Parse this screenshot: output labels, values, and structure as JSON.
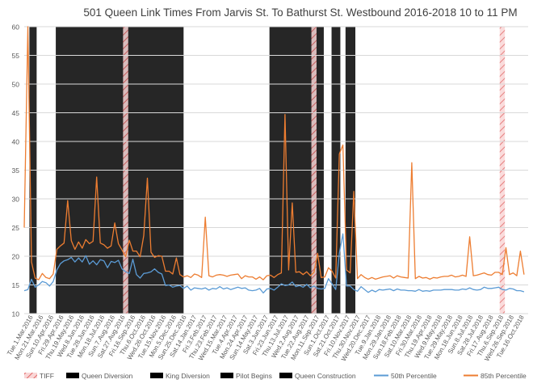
{
  "chart_data": {
    "type": "line",
    "title": "501 Queen Link Times From Jarvis St. To Bathurst St. Westbound 2016-2018 10 to 11 PM",
    "xlabel": "",
    "ylabel": "",
    "ylim": [
      10,
      60
    ],
    "yticks": [
      "10",
      "15",
      "20",
      "25",
      "30",
      "35",
      "40",
      "45",
      "50",
      "55",
      "60"
    ],
    "grid": true,
    "legend_position": "bottom",
    "x_start": "2016-03-01",
    "x_end": "2018-10-31",
    "x_tick_labels": [
      "Tue.1.Mar.2016",
      "Mon.21.Mar.2016",
      "Sun.10.Apr.2016",
      "Fri.29.Apr.2016",
      "Thu.19.May.2016",
      "Wed.8.Jun.2016",
      "Tue.28.Jun.2016",
      "Mon.18.Jul.2016",
      "Sun.7.Aug.2016",
      "Sat.27.Aug.2016",
      "Fri.16.Sep.2016",
      "Thu.6.Oct.2016",
      "Wed.26.Oct.2016",
      "Tue.15.Nov.2016",
      "Mon.5.Dec.2016",
      "Sun.25.Dec.2016",
      "Sat.14.Jan.2017",
      "Fri.3.Feb.2017",
      "Thu.23.Feb.2017",
      "Wed.15.Mar.2017",
      "Tue.4.Apr.2017",
      "Mon.24.Apr.2017",
      "Sun.14.May.2017",
      "Sat.3.Jun.2017",
      "Fri.23.Jun.2017",
      "Thu.13.Jul.2017",
      "Wed.2.Aug.2017",
      "Tue.22.Aug.2017",
      "Mon.11.Sep.2017",
      "Sun.1.Oct.2017",
      "Sat.21.Oct.2017",
      "Fri.10.Nov.2017",
      "Thu.30.Nov.2017",
      "Wed.20.Dec.2017",
      "Tue.9.Jan.2018",
      "Mon.29.Jan.2018",
      "Sun.18.Feb.2018",
      "Sat.10.Mar.2018",
      "Fri.30.Mar.2018",
      "Thu.19.Apr.2018",
      "Wed.9.May.2018",
      "Tue.29.May.2018",
      "Mon.18.Jun.2018",
      "Sun.8.Jul.2018",
      "Sat.28.Jul.2018",
      "Fri.17.Aug.2018",
      "Thu.6.Sep.2018",
      "Wed.26.Sep.2018",
      "Tue.16.Oct.2018"
    ],
    "periods": [
      {
        "legend": "King Diversion",
        "color": "#b4a7d6",
        "start": "2016-03-11",
        "end": "2016-03-25"
      },
      {
        "legend": "Queen Diversion",
        "color": "#f4cba6",
        "start": "2016-05-01",
        "end": "2017-01-03"
      },
      {
        "legend": "TIFF",
        "color": "#f2a6a6",
        "start": "2016-09-08",
        "end": "2016-09-18"
      },
      {
        "legend": "Queen Construction",
        "color": "#8e9fc4",
        "start": "2017-06-18",
        "end": "2017-10-01"
      },
      {
        "legend": "TIFF",
        "color": "#f2a6a6",
        "start": "2017-09-07",
        "end": "2017-09-17"
      },
      {
        "legend": "Queen Diversion",
        "color": "#f4cba6",
        "start": "2017-10-16",
        "end": "2017-11-02"
      },
      {
        "legend": "Pilot Begins",
        "color": "#b6d7a8",
        "start": "2017-11-12",
        "end": "2017-12-01"
      },
      {
        "legend": "TIFF",
        "color": "#f2a6a6",
        "start": "2018-09-06",
        "end": "2018-09-16"
      }
    ],
    "series": [
      {
        "name": "50th Percentile",
        "color": "#5b9bd5",
        "step_days": 7,
        "values": [
          14.0,
          14.2,
          16.0,
          14.6,
          15.0,
          15.6,
          15.4,
          14.8,
          15.6,
          17.6,
          18.7,
          19.2,
          19.4,
          19.8,
          19.0,
          19.7,
          19.0,
          20.1,
          18.6,
          19.2,
          18.5,
          19.4,
          19.2,
          18.0,
          19.1,
          18.9,
          19.3,
          17.8,
          17.3,
          17.0,
          19.5,
          16.8,
          16.2,
          17.0,
          17.1,
          17.3,
          17.8,
          17.2,
          16.9,
          14.9,
          15.0,
          14.6,
          14.8,
          14.9,
          14.4,
          14.8,
          14.1,
          14.5,
          14.4,
          14.3,
          14.5,
          14.1,
          14.4,
          14.3,
          14.7,
          14.3,
          14.5,
          14.2,
          14.4,
          14.6,
          14.4,
          14.5,
          14.1,
          14.0,
          14.1,
          14.4,
          13.6,
          14.3,
          14.4,
          14.1,
          14.6,
          15.2,
          14.9,
          15.0,
          15.5,
          14.7,
          14.9,
          14.6,
          15.1,
          14.5,
          14.8,
          14.4,
          14.3,
          14.4,
          16.1,
          15.2,
          14.2,
          20.5,
          23.9,
          14.8,
          14.8,
          14.2,
          13.9,
          14.7,
          14.2,
          13.7,
          14.1,
          13.8,
          14.2,
          14.1,
          14.2,
          14.3,
          14.0,
          14.3,
          14.1,
          14.1,
          14.0,
          14.0,
          13.9,
          14.2,
          13.9,
          14.0,
          13.9,
          14.1,
          14.1,
          14.1,
          14.2,
          14.2,
          14.2,
          14.1,
          14.1,
          14.3,
          14.2,
          14.5,
          14.2,
          14.1,
          14.2,
          14.6,
          14.4,
          14.4,
          14.5,
          14.6,
          14.2,
          14.1,
          14.4,
          14.3,
          14.0,
          14.0,
          13.8
        ]
      },
      {
        "name": "85th Percentile",
        "color": "#ed7d31",
        "step_days": 7,
        "values": [
          25.0,
          60.0,
          19.0,
          16.2,
          15.9,
          17.0,
          16.3,
          16.1,
          16.9,
          21.2,
          21.8,
          22.3,
          29.7,
          22.7,
          21.2,
          22.5,
          21.4,
          22.9,
          22.2,
          22.6,
          33.8,
          22.3,
          22.0,
          21.4,
          21.8,
          25.8,
          22.2,
          21.1,
          19.9,
          22.8,
          20.9,
          20.9,
          19.9,
          23.6,
          33.6,
          20.7,
          19.8,
          20.1,
          20.0,
          17.4,
          17.4,
          16.9,
          19.7,
          16.8,
          16.4,
          16.6,
          16.3,
          16.9,
          16.7,
          16.3,
          26.8,
          16.6,
          16.4,
          16.7,
          16.8,
          16.7,
          16.5,
          16.7,
          16.8,
          16.9,
          16.1,
          16.6,
          16.4,
          16.4,
          16.0,
          16.4,
          15.9,
          16.6,
          16.7,
          16.3,
          16.8,
          17.1,
          44.7,
          17.6,
          29.3,
          17.2,
          17.3,
          16.8,
          17.3,
          16.6,
          17.2,
          20.5,
          16.3,
          16.4,
          18.0,
          17.4,
          16.2,
          37.8,
          39.4,
          17.6,
          17.1,
          31.3,
          16.1,
          16.8,
          16.3,
          16.0,
          16.3,
          16.0,
          16.2,
          16.4,
          16.5,
          16.6,
          16.2,
          16.6,
          16.4,
          16.3,
          16.2,
          36.3,
          16.1,
          16.5,
          16.2,
          16.3,
          16.0,
          16.3,
          16.2,
          16.4,
          16.5,
          16.5,
          16.7,
          16.4,
          16.5,
          16.7,
          16.5,
          23.4,
          16.6,
          16.7,
          16.9,
          17.1,
          16.8,
          16.7,
          17.2,
          17.2,
          16.8,
          21.5,
          16.8,
          17.1,
          16.6,
          20.9,
          16.8
        ]
      }
    ],
    "legend": [
      {
        "label": "TIFF",
        "kind": "pattern",
        "color": "#f2a6a6"
      },
      {
        "label": "Queen Diversion",
        "kind": "pattern",
        "color": "#f4cba6"
      },
      {
        "label": "King Diversion",
        "kind": "pattern",
        "color": "#b4a7d6"
      },
      {
        "label": "Pilot Begins",
        "kind": "pattern",
        "color": "#b6d7a8"
      },
      {
        "label": "Queen Construction",
        "kind": "pattern",
        "color": "#8e9fc4"
      },
      {
        "label": "50th Percentile",
        "kind": "line",
        "color": "#5b9bd5"
      },
      {
        "label": "85th Percentile",
        "kind": "line",
        "color": "#ed7d31"
      }
    ]
  }
}
